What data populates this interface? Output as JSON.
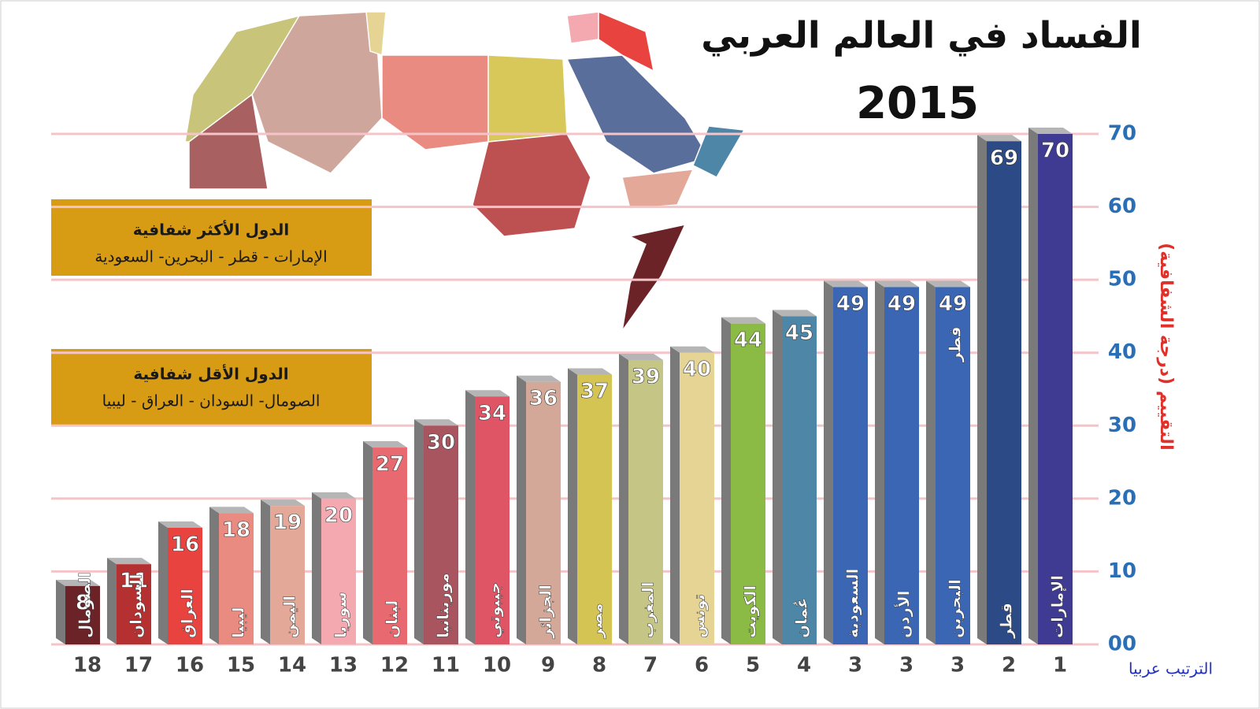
{
  "chart_data": {
    "type": "bar",
    "title": "الفساد في العالم العربي",
    "subtitle": "2015",
    "y_label": "التقييم (درجة الشفافية)",
    "x_label": "الترتيب عربيا",
    "categories": [
      "الإمارات",
      "قطر",
      "البحرين",
      "الأردن",
      "السعودية",
      "عُمان",
      "الكويت",
      "تونس",
      "المغرب",
      "مصر",
      "الجزائر",
      "جيبوتي",
      "موريتانيا",
      "لبنان",
      "سوريا",
      "اليمن",
      "ليبيا",
      "العراق",
      "السودان",
      "الصومال"
    ],
    "values": [
      70,
      69,
      49,
      49,
      49,
      45,
      44,
      40,
      39,
      37,
      36,
      34,
      30,
      27,
      20,
      19,
      18,
      16,
      11,
      8
    ],
    "ranks": [
      1,
      2,
      3,
      3,
      3,
      4,
      5,
      6,
      7,
      8,
      9,
      10,
      11,
      12,
      13,
      14,
      15,
      16,
      17,
      18
    ],
    "colors": [
      "#3f3a92",
      "#2c4a85",
      "#3a66b4",
      "#3a66b4",
      "#3a66b4",
      "#4e86a8",
      "#8bbb44",
      "#e5d494",
      "#c5c585",
      "#d4c454",
      "#d4a898",
      "#e05565",
      "#a85560",
      "#e86a70",
      "#f4a8b0",
      "#e3a898",
      "#e98b80",
      "#e8433f",
      "#b53030",
      "#6b2328"
    ],
    "annotation": "قطر",
    "ylim": [
      0,
      70
    ],
    "yticks": [
      {
        "value": 0,
        "label": "00"
      },
      10,
      20,
      30,
      40,
      50,
      60,
      70
    ],
    "grid": true,
    "boxes": [
      {
        "title": "الدول الأكثر شفافية",
        "text": "الإمارات - قطر - البحرين- السعودية"
      },
      {
        "title": "الدول الأقل شفافية",
        "text": "الصومال- السودان - العراق - ليبيا"
      }
    ]
  }
}
